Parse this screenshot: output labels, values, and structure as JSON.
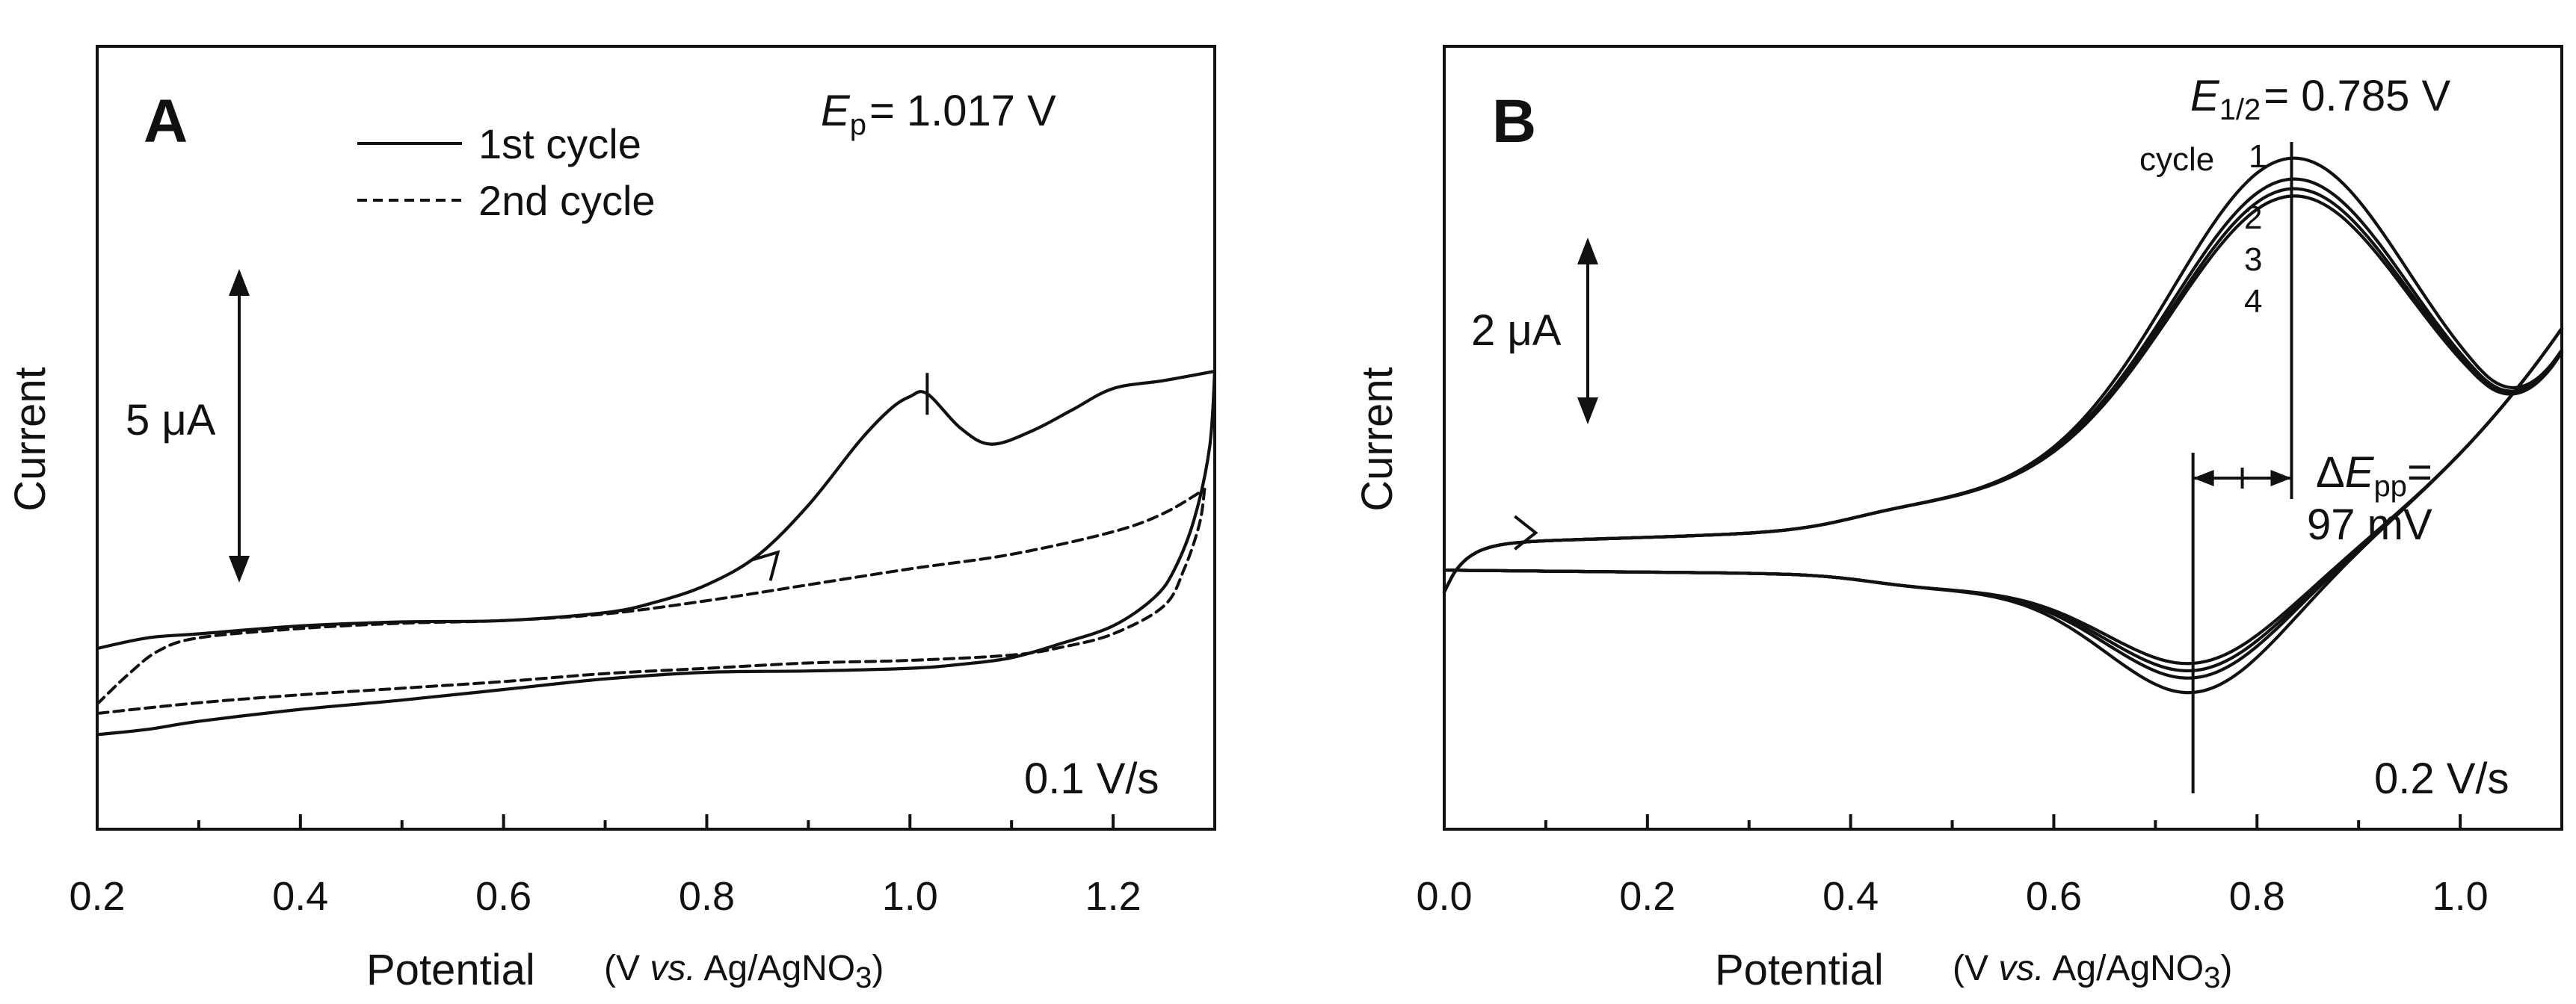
{
  "chart_data": [
    {
      "panel": "A",
      "type": "line",
      "xlabel": "Potential",
      "xunit_prefix": "(V ",
      "xunit_vs": "vs.",
      "xunit_ref": " Ag/AgNO",
      "xunit_sub": "3",
      "xunit_close": ")",
      "ylabel": "Current",
      "xlim": [
        0.2,
        1.3
      ],
      "xticks": [
        "0.2",
        "0.4",
        "0.6",
        "0.8",
        "1.0",
        "1.2"
      ],
      "scale_bar": "5 μA",
      "scan_rate": "0.1 V/s",
      "peak_label": {
        "symbol": "E",
        "sub": "p",
        "value": "= 1.017 V",
        "potential": 1.017
      },
      "legend": [
        "1st cycle",
        "2nd cycle"
      ],
      "series": [
        {
          "name": "1st cycle",
          "style": "solid",
          "forward": [
            [
              0.2,
              0.0
            ],
            [
              0.25,
              0.4
            ],
            [
              0.3,
              0.55
            ],
            [
              0.4,
              0.85
            ],
            [
              0.5,
              1.0
            ],
            [
              0.6,
              1.05
            ],
            [
              0.7,
              1.35
            ],
            [
              0.75,
              1.75
            ],
            [
              0.8,
              2.4
            ],
            [
              0.85,
              3.5
            ],
            [
              0.9,
              5.4
            ],
            [
              0.95,
              7.8
            ],
            [
              0.98,
              9.0
            ],
            [
              1.0,
              9.5
            ],
            [
              1.017,
              9.6
            ],
            [
              1.05,
              8.3
            ],
            [
              1.08,
              7.7
            ],
            [
              1.12,
              8.2
            ],
            [
              1.16,
              9.0
            ],
            [
              1.2,
              9.8
            ],
            [
              1.25,
              10.1
            ],
            [
              1.3,
              10.45
            ]
          ],
          "reverse": [
            [
              1.3,
              10.45
            ],
            [
              1.295,
              7.6
            ],
            [
              1.28,
              4.9
            ],
            [
              1.26,
              2.95
            ],
            [
              1.24,
              1.9
            ],
            [
              1.2,
              0.85
            ],
            [
              1.15,
              0.2
            ],
            [
              1.1,
              -0.35
            ],
            [
              1.05,
              -0.6
            ],
            [
              1.0,
              -0.75
            ],
            [
              0.9,
              -0.85
            ],
            [
              0.8,
              -0.9
            ],
            [
              0.7,
              -1.15
            ],
            [
              0.6,
              -1.55
            ],
            [
              0.5,
              -1.95
            ],
            [
              0.4,
              -2.3
            ],
            [
              0.3,
              -2.75
            ],
            [
              0.25,
              -3.05
            ],
            [
              0.2,
              -3.25
            ]
          ]
        },
        {
          "name": "2nd cycle",
          "style": "dashed",
          "forward": [
            [
              0.2,
              -2.1
            ],
            [
              0.23,
              -1.0
            ],
            [
              0.26,
              -0.1
            ],
            [
              0.3,
              0.4
            ],
            [
              0.4,
              0.75
            ],
            [
              0.5,
              0.95
            ],
            [
              0.6,
              1.05
            ],
            [
              0.7,
              1.3
            ],
            [
              0.8,
              1.8
            ],
            [
              0.9,
              2.4
            ],
            [
              1.0,
              3.0
            ],
            [
              1.1,
              3.55
            ],
            [
              1.2,
              4.4
            ],
            [
              1.25,
              5.1
            ],
            [
              1.29,
              6.0
            ]
          ],
          "reverse": [
            [
              1.29,
              6.0
            ],
            [
              1.285,
              4.7
            ],
            [
              1.27,
              3.0
            ],
            [
              1.25,
              1.6
            ],
            [
              1.2,
              0.55
            ],
            [
              1.15,
              0.05
            ],
            [
              1.1,
              -0.25
            ],
            [
              1.0,
              -0.45
            ],
            [
              0.9,
              -0.55
            ],
            [
              0.8,
              -0.75
            ],
            [
              0.7,
              -0.95
            ],
            [
              0.6,
              -1.25
            ],
            [
              0.5,
              -1.5
            ],
            [
              0.4,
              -1.75
            ],
            [
              0.3,
              -2.05
            ],
            [
              0.2,
              -2.45
            ]
          ]
        }
      ]
    },
    {
      "panel": "B",
      "type": "line",
      "xlabel": "Potential",
      "xunit_prefix": "(V ",
      "xunit_vs": "vs.",
      "xunit_ref": " Ag/AgNO",
      "xunit_sub": "3",
      "xunit_close": ")",
      "ylabel": "Current",
      "xlim": [
        0.0,
        1.1
      ],
      "xticks": [
        "0.0",
        "0.2",
        "0.4",
        "0.6",
        "0.8",
        "1.0"
      ],
      "scale_bar": "2 μA",
      "scan_rate": "0.2 V/s",
      "half_wave": {
        "symbol": "E",
        "sub": "1/2",
        "value": "= 0.785 V"
      },
      "delta_label": {
        "prefix": "Δ",
        "symbol": "E",
        "sub": "pp",
        "eq": "=",
        "value": "97 mV"
      },
      "anodic_peak": 0.834,
      "cathodic_peak": 0.737,
      "cycle_word": "cycle",
      "cycles": [
        "1",
        "2",
        "3",
        "4"
      ],
      "series": [
        {
          "name": "cycle 1",
          "anodic_peak_current": 7.58,
          "anodic_min_current": 6.55,
          "cathodic_peak_current": -2.4
        },
        {
          "name": "cycle 2",
          "anodic_peak_current": 7.15,
          "anodic_min_current": 6.25,
          "cathodic_peak_current": -2.1
        },
        {
          "name": "cycle 3",
          "anodic_peak_current": 6.95,
          "anodic_min_current": 6.1,
          "cathodic_peak_current": -1.95
        },
        {
          "name": "cycle 4",
          "anodic_peak_current": 6.8,
          "anodic_min_current": 5.95,
          "cathodic_peak_current": -1.8
        }
      ]
    }
  ]
}
